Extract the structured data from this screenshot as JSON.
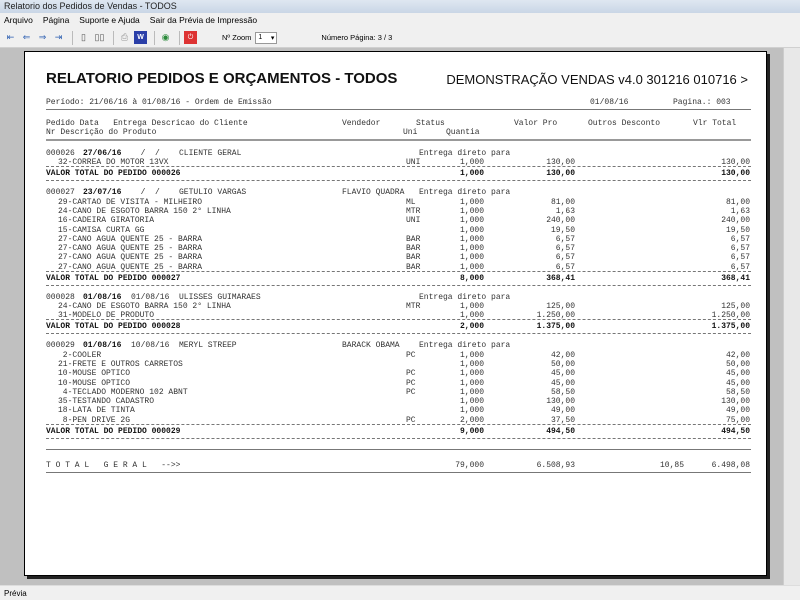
{
  "window": {
    "title": "Relatorio dos Pedidos de Vendas - TODOS"
  },
  "menu": [
    "Arquivo",
    "Página",
    "Suporte e Ajuda",
    "Sair da Prévia de Impressão"
  ],
  "toolbar": {
    "zoom_label": "Nº Zoom",
    "zoom_value": "1",
    "page_label": "Número Página: 3 / 3"
  },
  "status": "Prévia",
  "report": {
    "title": "RELATORIO PEDIDOS E ORÇAMENTOS - TODOS",
    "system": "DEMONSTRAÇÃO VENDAS v4.0 301216 010716 >",
    "period": "Período: 21/06/16 à 01/08/16 - Ordem de Emissão",
    "date": "01/08/16",
    "page": "Pagina.: 003",
    "col_header1": {
      "pedido": "Pedido Data   Entrega Descricao do Cliente",
      "vendedor": "Vendedor",
      "status": "Status",
      "valor_pro": "Valor Pro",
      "outros": "Outros Desconto",
      "vlr_total": "Vlr Total"
    },
    "col_header2": {
      "produto": "Nr Descrição do Produto",
      "uni": "Uni",
      "quantia": "Quantia"
    },
    "orders": [
      {
        "nr": "000026",
        "data": "27/06/16",
        "entrega": "  /  /  ",
        "cliente": "CLIENTE GERAL",
        "vendedor": "",
        "status": "Entrega direto para",
        "items": [
          {
            "produto": "32-CORREA DO MOTOR 13VX",
            "uni": "UNI",
            "qtd": "1,000",
            "valor": "130,00",
            "total": "130,00"
          }
        ],
        "total_label": "VALOR TOTAL DO PEDIDO 000026",
        "total_qtd": "1,000",
        "total_valor": "130,00",
        "total_total": "130,00"
      },
      {
        "nr": "000027",
        "data": "23/07/16",
        "entrega": "  /  /  ",
        "cliente": "GETULIO VARGAS",
        "vendedor": "FLAVIO QUADRA",
        "status": "Entrega direto para",
        "items": [
          {
            "produto": "29-CARTAO DE VISITA - MILHEIRO",
            "uni": "ML",
            "qtd": "1,000",
            "valor": "81,00",
            "total": "81,00"
          },
          {
            "produto": "24-CANO DE ESGOTO BARRA 150 2° LINHA",
            "uni": "MTR",
            "qtd": "1,000",
            "valor": "1,63",
            "total": "1,63"
          },
          {
            "produto": "16-CADEIRA GIRATORIA",
            "uni": "UNI",
            "qtd": "1,000",
            "valor": "240,00",
            "total": "240,00"
          },
          {
            "produto": "15-CAMISA CURTA GG",
            "uni": "",
            "qtd": "1,000",
            "valor": "19,50",
            "total": "19,50"
          },
          {
            "produto": "27-CANO AGUA QUENTE 25 - BARRA",
            "uni": "BAR",
            "qtd": "1,000",
            "valor": "6,57",
            "total": "6,57"
          },
          {
            "produto": "27-CANO AGUA QUENTE 25 - BARRA",
            "uni": "BAR",
            "qtd": "1,000",
            "valor": "6,57",
            "total": "6,57"
          },
          {
            "produto": "27-CANO AGUA QUENTE 25 - BARRA",
            "uni": "BAR",
            "qtd": "1,000",
            "valor": "6,57",
            "total": "6,57"
          },
          {
            "produto": "27-CANO AGUA QUENTE 25 - BARRA",
            "uni": "BAR",
            "qtd": "1,000",
            "valor": "6,57",
            "total": "6,57"
          }
        ],
        "total_label": "VALOR TOTAL DO PEDIDO 000027",
        "total_qtd": "8,000",
        "total_valor": "368,41",
        "total_total": "368,41"
      },
      {
        "nr": "000028",
        "data": "01/08/16",
        "entrega": "01/08/16",
        "cliente": "ULISSES GUIMARAES",
        "vendedor": "",
        "status": "Entrega direto para",
        "items": [
          {
            "produto": "24-CANO DE ESGOTO BARRA 150 2° LINHA",
            "uni": "MTR",
            "qtd": "1,000",
            "valor": "125,00",
            "total": "125,00"
          },
          {
            "produto": "31-MODELO DE PRODUTO",
            "uni": "",
            "qtd": "1,000",
            "valor": "1.250,00",
            "total": "1.250,00"
          }
        ],
        "total_label": "VALOR TOTAL DO PEDIDO 000028",
        "total_qtd": "2,000",
        "total_valor": "1.375,00",
        "total_total": "1.375,00"
      },
      {
        "nr": "000029",
        "data": "01/08/16",
        "entrega": "10/08/16",
        "cliente": "MERYL STREEP",
        "vendedor": "BARACK OBAMA",
        "status": "Entrega direto para",
        "items": [
          {
            "produto": " 2-COOLER",
            "uni": "PC",
            "qtd": "1,000",
            "valor": "42,00",
            "total": "42,00"
          },
          {
            "produto": "21-FRETE E OUTROS CARRETOS",
            "uni": "",
            "qtd": "1,000",
            "valor": "50,00",
            "total": "50,00"
          },
          {
            "produto": "10-MOUSE OPTICO",
            "uni": "PC",
            "qtd": "1,000",
            "valor": "45,00",
            "total": "45,00"
          },
          {
            "produto": "10-MOUSE OPTICO",
            "uni": "PC",
            "qtd": "1,000",
            "valor": "45,00",
            "total": "45,00"
          },
          {
            "produto": " 4-TECLADO MODERNO 102 ABNT",
            "uni": "PC",
            "qtd": "1,000",
            "valor": "58,50",
            "total": "58,50"
          },
          {
            "produto": "35-TESTANDO CADASTRO",
            "uni": "",
            "qtd": "1,000",
            "valor": "130,00",
            "total": "130,00"
          },
          {
            "produto": "18-LATA DE TINTA",
            "uni": "",
            "qtd": "1,000",
            "valor": "49,00",
            "total": "49,00"
          },
          {
            "produto": " 8-PEN DRIVE 2G",
            "uni": "PC",
            "qtd": "2,000",
            "valor": "37,50",
            "total": "75,00"
          }
        ],
        "total_label": "VALOR TOTAL DO PEDIDO 000029",
        "total_qtd": "9,000",
        "total_valor": "494,50",
        "total_total": "494,50"
      }
    ],
    "grand_total": {
      "label": "T O T A L   G E R A L   -->>",
      "qtd": "79,000",
      "valor": "6.508,93",
      "desconto": "10,85",
      "total": "6.498,08"
    }
  }
}
